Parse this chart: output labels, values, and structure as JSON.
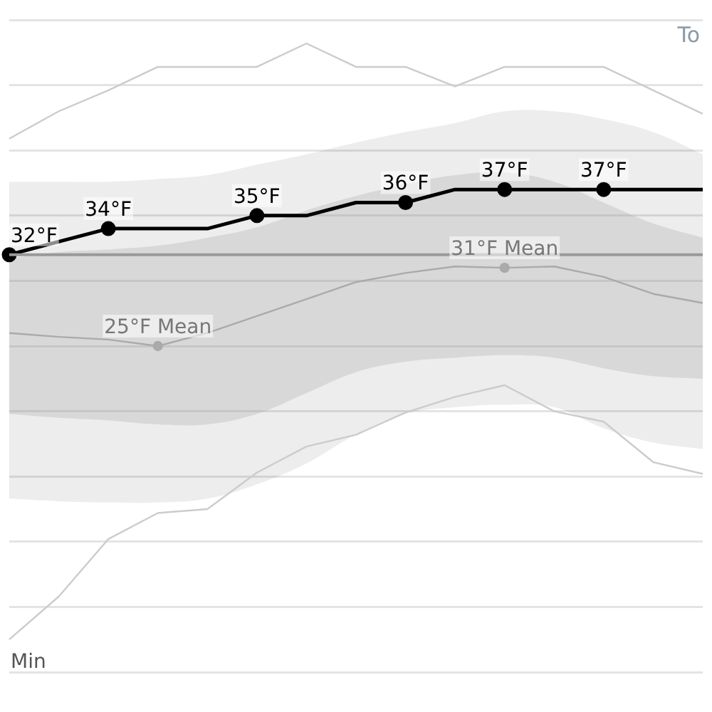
{
  "chart_data": {
    "type": "line",
    "categories": [
      null,
      null,
      null,
      null,
      null,
      null,
      null,
      null,
      null,
      null,
      null,
      null,
      null,
      null,
      null
    ],
    "series": [
      {
        "color": "#000000",
        "values": [
          32,
          33,
          34,
          34,
          34,
          35,
          35,
          36,
          36,
          37,
          37,
          37,
          37,
          37,
          37
        ],
        "value_labels": [
          "32°F",
          null,
          "34°F",
          null,
          null,
          "35°F",
          null,
          null,
          "36°F",
          null,
          "37°F",
          null,
          "37°F",
          null,
          null
        ],
        "lower": [
          13.3,
          13.1,
          13,
          13,
          13.3,
          14.4,
          16,
          18.2,
          19.8,
          20.3,
          20.5,
          20.3,
          18.7,
          17.6,
          17.1
        ],
        "upper": [
          37.6,
          37.6,
          37.6,
          37.8,
          38.1,
          38.9,
          39.7,
          40.6,
          41.4,
          42.1,
          43,
          43,
          42.4,
          41.4,
          39.7
        ]
      },
      {
        "color": "#aaaaaa",
        "values": [
          26,
          25.7,
          25.5,
          25,
          26,
          27.3,
          28.6,
          29.9,
          30.6,
          31.1,
          31,
          31.1,
          30.3,
          29,
          28.3
        ],
        "value_labels": [
          null,
          null,
          null,
          "25°F Mean",
          null,
          null,
          null,
          null,
          null,
          null,
          "31°F Mean",
          null,
          null,
          null,
          null
        ],
        "lower": [
          19.8,
          19.5,
          19.3,
          19,
          19,
          19.8,
          21.4,
          23,
          23.8,
          24.1,
          24.3,
          24.1,
          23.3,
          22.7,
          22.5
        ],
        "upper": [
          31.7,
          32.2,
          32.4,
          32.7,
          33.3,
          34.1,
          35.4,
          36.5,
          37.4,
          38.1,
          38.3,
          37.6,
          36,
          34.4,
          33.3
        ]
      },
      {
        "color": "#cccccc",
        "values": [
          40.9,
          43,
          44.6,
          46.4,
          46.4,
          46.4,
          48.2,
          46.4,
          46.4,
          44.9,
          46.4,
          46.4,
          46.4,
          44.6,
          42.8
        ]
      },
      {
        "name": "Min",
        "color": "#cccccc",
        "values": [
          2.5,
          5.8,
          10.2,
          12.2,
          12.5,
          15.3,
          17.3,
          18.2,
          19.9,
          21.1,
          22,
          20,
          19.2,
          16.1,
          15.2
        ]
      }
    ],
    "ylim": [
      0,
      50
    ],
    "yticks": [
      {
        "value": 0,
        "label": null
      },
      {
        "value": 5,
        "label": null
      },
      {
        "value": 10,
        "label": null
      },
      {
        "value": 15,
        "label": null
      },
      {
        "value": 20,
        "label": null
      },
      {
        "value": 25,
        "label": null
      },
      {
        "value": 30,
        "label": null
      },
      {
        "value": 35,
        "label": null
      },
      {
        "value": 40,
        "label": null
      },
      {
        "value": 45,
        "label": null
      },
      {
        "value": 50,
        "label": null
      }
    ],
    "grid": "y",
    "tick_labels": false,
    "ref_lines": [
      {
        "axis": "y",
        "value": 32,
        "color": "#999999"
      }
    ],
    "annotations": [
      "To"
    ]
  }
}
